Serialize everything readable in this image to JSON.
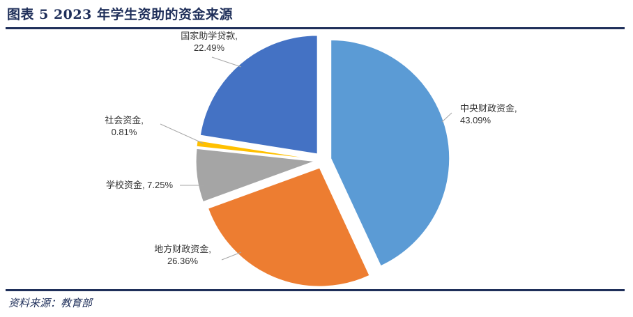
{
  "header": {
    "title": "图表 5    2023 年学生资助的资金来源"
  },
  "footer": {
    "source": "资料来源：教育部"
  },
  "chart_data": {
    "type": "pie",
    "title": "",
    "exploded": true,
    "slices": [
      {
        "name": "中央财政资金",
        "value": 43.09,
        "label": "中央财政资金,",
        "pct": "43.09%",
        "color": "#5b9bd5"
      },
      {
        "name": "地方财政资金",
        "value": 26.36,
        "label": "地方财政资金,",
        "pct": "26.36%",
        "color": "#ed7d31"
      },
      {
        "name": "学校资金",
        "value": 7.25,
        "label": "学校资金, 7.25%",
        "pct": "",
        "color": "#a5a5a5"
      },
      {
        "name": "社会资金",
        "value": 0.81,
        "label": "社会资金,",
        "pct": "0.81%",
        "color": "#ffc000"
      },
      {
        "name": "国家助学贷款",
        "value": 22.49,
        "label": "国家助学贷款,",
        "pct": "22.49%",
        "color": "#4472c4"
      }
    ]
  }
}
